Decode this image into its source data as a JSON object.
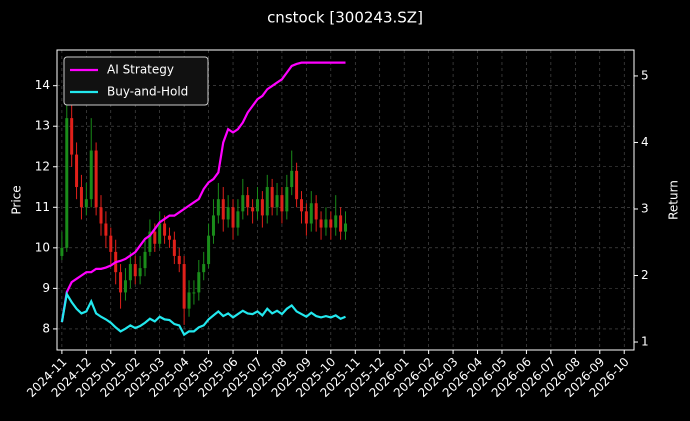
{
  "chart_data": {
    "type": "candlestick",
    "title": "cnstock [300243.SZ]",
    "ylabel": "Price",
    "y2label": "Return",
    "x": [
      0,
      0.2,
      0.4,
      0.6,
      0.8,
      1,
      1.2,
      1.4,
      1.6,
      1.8,
      2,
      2.2,
      2.4,
      2.6,
      2.8,
      3,
      3.2,
      3.4,
      3.6,
      3.8,
      4,
      4.2,
      4.4,
      4.6,
      4.8,
      5,
      5.2,
      5.4,
      5.6,
      5.8,
      6,
      6.2,
      6.4,
      6.6,
      6.8,
      7,
      7.2,
      7.4,
      7.6,
      7.8,
      8,
      8.2,
      8.4,
      8.6,
      8.8,
      9,
      9.2,
      9.4,
      9.6,
      9.8,
      10,
      10.2,
      10.4,
      10.6,
      10.8,
      11,
      11.2,
      11.4,
      11.6
    ],
    "open": [
      9.8,
      10.0,
      13.2,
      12.3,
      11.5,
      11.0,
      11.2,
      12.4,
      11.0,
      10.6,
      10.3,
      9.9,
      9.4,
      8.9,
      9.2,
      9.6,
      9.3,
      9.5,
      9.9,
      10.4,
      10.1,
      10.6,
      10.3,
      10.2,
      9.8,
      9.6,
      8.5,
      8.9,
      8.9,
      9.4,
      9.6,
      10.3,
      10.8,
      11.2,
      10.7,
      11.0,
      10.5,
      10.9,
      11.3,
      11.0,
      10.9,
      11.2,
      10.8,
      11.5,
      11.0,
      11.3,
      10.9,
      11.5,
      11.9,
      11.2,
      10.9,
      10.6,
      11.1,
      10.7,
      10.5,
      10.7,
      10.5,
      10.8,
      10.4
    ],
    "high": [
      10.4,
      13.9,
      13.6,
      12.6,
      11.8,
      11.6,
      13.2,
      12.6,
      11.3,
      10.9,
      10.5,
      10.2,
      9.6,
      9.5,
      9.9,
      9.8,
      9.8,
      10.2,
      10.7,
      10.6,
      10.9,
      10.8,
      10.5,
      10.4,
      10.0,
      9.8,
      9.2,
      9.2,
      9.7,
      9.9,
      10.6,
      11.2,
      11.6,
      11.5,
      11.3,
      11.2,
      11.2,
      11.7,
      11.5,
      11.2,
      11.5,
      11.4,
      11.8,
      11.7,
      11.6,
      11.5,
      11.8,
      12.4,
      12.1,
      11.4,
      11.1,
      11.4,
      11.3,
      10.9,
      11.0,
      10.9,
      11.3,
      11.0,
      10.9
    ],
    "low": [
      9.7,
      9.9,
      12.0,
      11.2,
      10.7,
      10.8,
      11.0,
      10.8,
      10.3,
      10.0,
      9.6,
      9.1,
      8.5,
      8.7,
      9.0,
      9.1,
      9.1,
      9.3,
      9.8,
      9.9,
      10.0,
      10.1,
      10.0,
      9.6,
      9.4,
      8.1,
      8.3,
      8.6,
      8.7,
      9.2,
      9.5,
      10.1,
      10.6,
      10.4,
      10.5,
      10.2,
      10.3,
      10.7,
      10.8,
      10.6,
      10.7,
      10.5,
      10.6,
      10.8,
      10.8,
      10.6,
      10.7,
      11.3,
      11.0,
      10.6,
      10.3,
      10.4,
      10.4,
      10.2,
      10.3,
      10.2,
      10.3,
      10.2,
      10.2
    ],
    "close": [
      10.0,
      13.2,
      12.3,
      11.5,
      11.0,
      11.2,
      12.4,
      11.0,
      10.6,
      10.3,
      9.9,
      9.4,
      8.9,
      9.2,
      9.6,
      9.3,
      9.5,
      9.9,
      10.4,
      10.1,
      10.6,
      10.3,
      10.2,
      9.8,
      9.6,
      8.5,
      8.9,
      8.9,
      9.4,
      9.6,
      10.3,
      10.8,
      11.2,
      10.7,
      11.0,
      10.5,
      10.9,
      11.3,
      11.0,
      10.9,
      11.2,
      10.8,
      11.5,
      11.0,
      11.3,
      10.9,
      11.5,
      11.9,
      11.2,
      10.9,
      10.6,
      11.1,
      10.7,
      10.5,
      10.7,
      10.5,
      10.8,
      10.4,
      10.6
    ],
    "up_color": "#1a8c1a",
    "down_color": "#e0201a",
    "series": [
      {
        "name": "AI Strategy",
        "color": "#ff00ff",
        "axis": "y2",
        "values": [
          1.3,
          1.75,
          1.9,
          1.95,
          2.0,
          2.05,
          2.05,
          2.1,
          2.1,
          2.12,
          2.15,
          2.2,
          2.22,
          2.25,
          2.3,
          2.35,
          2.45,
          2.55,
          2.6,
          2.7,
          2.8,
          2.85,
          2.9,
          2.9,
          2.95,
          3.0,
          3.05,
          3.1,
          3.15,
          3.3,
          3.4,
          3.45,
          3.55,
          4.0,
          4.2,
          4.15,
          4.2,
          4.3,
          4.45,
          4.55,
          4.65,
          4.7,
          4.8,
          4.85,
          4.9,
          4.95,
          5.05,
          5.15,
          5.18,
          5.2,
          5.2,
          5.2,
          5.2,
          5.2,
          5.2,
          5.2,
          5.2,
          5.2,
          5.2
        ]
      },
      {
        "name": "Buy-and-Hold",
        "color": "#22e8ee",
        "axis": "y2",
        "values": [
          1.3,
          1.72,
          1.6,
          1.5,
          1.43,
          1.46,
          1.61,
          1.43,
          1.38,
          1.34,
          1.29,
          1.22,
          1.16,
          1.2,
          1.25,
          1.21,
          1.24,
          1.29,
          1.35,
          1.31,
          1.38,
          1.34,
          1.33,
          1.27,
          1.25,
          1.11,
          1.16,
          1.16,
          1.22,
          1.25,
          1.34,
          1.4,
          1.46,
          1.39,
          1.43,
          1.37,
          1.42,
          1.47,
          1.43,
          1.42,
          1.46,
          1.4,
          1.5,
          1.43,
          1.47,
          1.42,
          1.5,
          1.55,
          1.46,
          1.42,
          1.38,
          1.44,
          1.39,
          1.37,
          1.39,
          1.37,
          1.4,
          1.35,
          1.38
        ]
      }
    ],
    "xlim": [
      -0.2,
      23.4
    ],
    "xticks": [
      {
        "value": 0,
        "label": "2024-11"
      },
      {
        "value": 1,
        "label": "2024-12"
      },
      {
        "value": 2,
        "label": "2025-01"
      },
      {
        "value": 3,
        "label": "2025-02"
      },
      {
        "value": 4,
        "label": "2025-03"
      },
      {
        "value": 5,
        "label": "2025-04"
      },
      {
        "value": 6,
        "label": "2025-05"
      },
      {
        "value": 7,
        "label": "2025-06"
      },
      {
        "value": 8,
        "label": "2025-07"
      },
      {
        "value": 9,
        "label": "2025-08"
      },
      {
        "value": 10,
        "label": "2025-09"
      },
      {
        "value": 11,
        "label": "2025-10"
      },
      {
        "value": 12,
        "label": "2025-11"
      },
      {
        "value": 13,
        "label": "2025-12"
      },
      {
        "value": 14,
        "label": "2026-01"
      },
      {
        "value": 15,
        "label": "2026-02"
      },
      {
        "value": 16,
        "label": "2026-03"
      },
      {
        "value": 17,
        "label": "2026-04"
      },
      {
        "value": 18,
        "label": "2026-05"
      },
      {
        "value": 19,
        "label": "2026-06"
      },
      {
        "value": 20,
        "label": "2026-07"
      },
      {
        "value": 21,
        "label": "2026-08"
      },
      {
        "value": 22,
        "label": "2026-09"
      },
      {
        "value": 23,
        "label": "2026-10"
      }
    ],
    "ylim": [
      7.48,
      14.88
    ],
    "yticks": [
      8,
      9,
      10,
      11,
      12,
      13,
      14
    ],
    "y2lim": [
      0.88,
      5.39
    ],
    "y2ticks": [
      1,
      2,
      3,
      4,
      5
    ],
    "grid": true,
    "legend": "upper left"
  }
}
